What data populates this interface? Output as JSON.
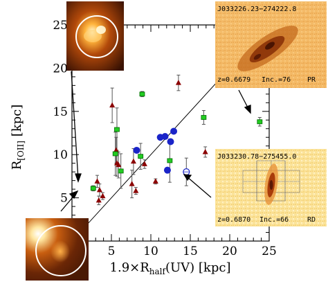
{
  "chart_data": {
    "type": "scatter",
    "title": "",
    "xlabel": {
      "prefix": "1.9×R",
      "sub": "half",
      "suffix": "(UV) [kpc]"
    },
    "ylabel": {
      "prefix": "R",
      "sub": "[OII]",
      "suffix": " [kpc]"
    },
    "xlim": [
      0,
      25
    ],
    "ylim": [
      0,
      25
    ],
    "x_ticks": [
      "5",
      "10",
      "15",
      "20",
      "25"
    ],
    "y_ticks": [
      "5",
      "10",
      "15",
      "20",
      "25"
    ],
    "grid": false,
    "one_to_one_line": true,
    "colors": {
      "triangle": "#8b0000",
      "square": "#22cc22",
      "square_edge": "#006600",
      "circle": "#1a24c8",
      "open_circle": "#1a24c8",
      "errorbar": "#555555"
    },
    "series": [
      {
        "marker": "triangle",
        "points": [
          {
            "x": 3.2,
            "y": 6.9,
            "err": 0.7
          },
          {
            "x": 3.4,
            "y": 4.7,
            "err": 0.5
          },
          {
            "x": 3.5,
            "y": 5.9,
            "err": 0.7
          },
          {
            "x": 3.9,
            "y": 5.2,
            "err": 0.4
          },
          {
            "x": 5.1,
            "y": 15.7,
            "err": 2.0
          },
          {
            "x": 5.6,
            "y": 10.5,
            "err": 1.5
          },
          {
            "x": 5.7,
            "y": 9.0,
            "err": 1.5
          },
          {
            "x": 5.9,
            "y": 8.8,
            "err": 1.5
          },
          {
            "x": 7.6,
            "y": 6.6,
            "err": 1.6
          },
          {
            "x": 7.8,
            "y": 9.2,
            "err": 1.5
          },
          {
            "x": 8.1,
            "y": 5.8,
            "err": 0.4
          },
          {
            "x": 9.2,
            "y": 8.9,
            "err": 0.5
          },
          {
            "x": 10.6,
            "y": 6.9,
            "err": 0.3
          },
          {
            "x": 13.5,
            "y": 18.3,
            "err": 0.9
          },
          {
            "x": 16.9,
            "y": 10.3,
            "err": 0.6
          }
        ]
      },
      {
        "marker": "square",
        "points": [
          {
            "x": 2.7,
            "y": 6.1,
            "err": 0.3
          },
          {
            "x": 5.5,
            "y": 10.1,
            "err": 2.5
          },
          {
            "x": 5.7,
            "y": 12.9,
            "err": 2.5
          },
          {
            "x": 6.2,
            "y": 8.1,
            "err": 2.0
          },
          {
            "x": 8.7,
            "y": 9.8,
            "err": 1.5
          },
          {
            "x": 8.9,
            "y": 17.0,
            "err": 0.3
          },
          {
            "x": 12.4,
            "y": 9.3,
            "err": 2.5
          },
          {
            "x": 16.7,
            "y": 14.3,
            "err": 0.8
          },
          {
            "x": 23.8,
            "y": 13.8,
            "err": 0.5
          }
        ]
      },
      {
        "marker": "circle",
        "points": [
          {
            "x": 8.2,
            "y": 10.5
          },
          {
            "x": 11.2,
            "y": 12.0
          },
          {
            "x": 11.8,
            "y": 12.1
          },
          {
            "x": 12.1,
            "y": 8.2
          },
          {
            "x": 12.5,
            "y": 11.5
          },
          {
            "x": 12.9,
            "y": 12.7
          }
        ]
      },
      {
        "marker": "open_circle",
        "points": [
          {
            "x": 14.5,
            "y": 8.0,
            "err": 1.6
          }
        ]
      }
    ],
    "insets": [
      {
        "id": "J033226.23-274222.8",
        "title": "J033226.23−274222.8",
        "z": "z=0.6679",
        "inc": "Inc.=76",
        "cls": "PR"
      },
      {
        "id": "J033230.78-275455.0",
        "title": "J033230.78−275455.0",
        "z": "z=0.6870",
        "inc": "Inc.=66",
        "cls": "RD"
      }
    ]
  }
}
